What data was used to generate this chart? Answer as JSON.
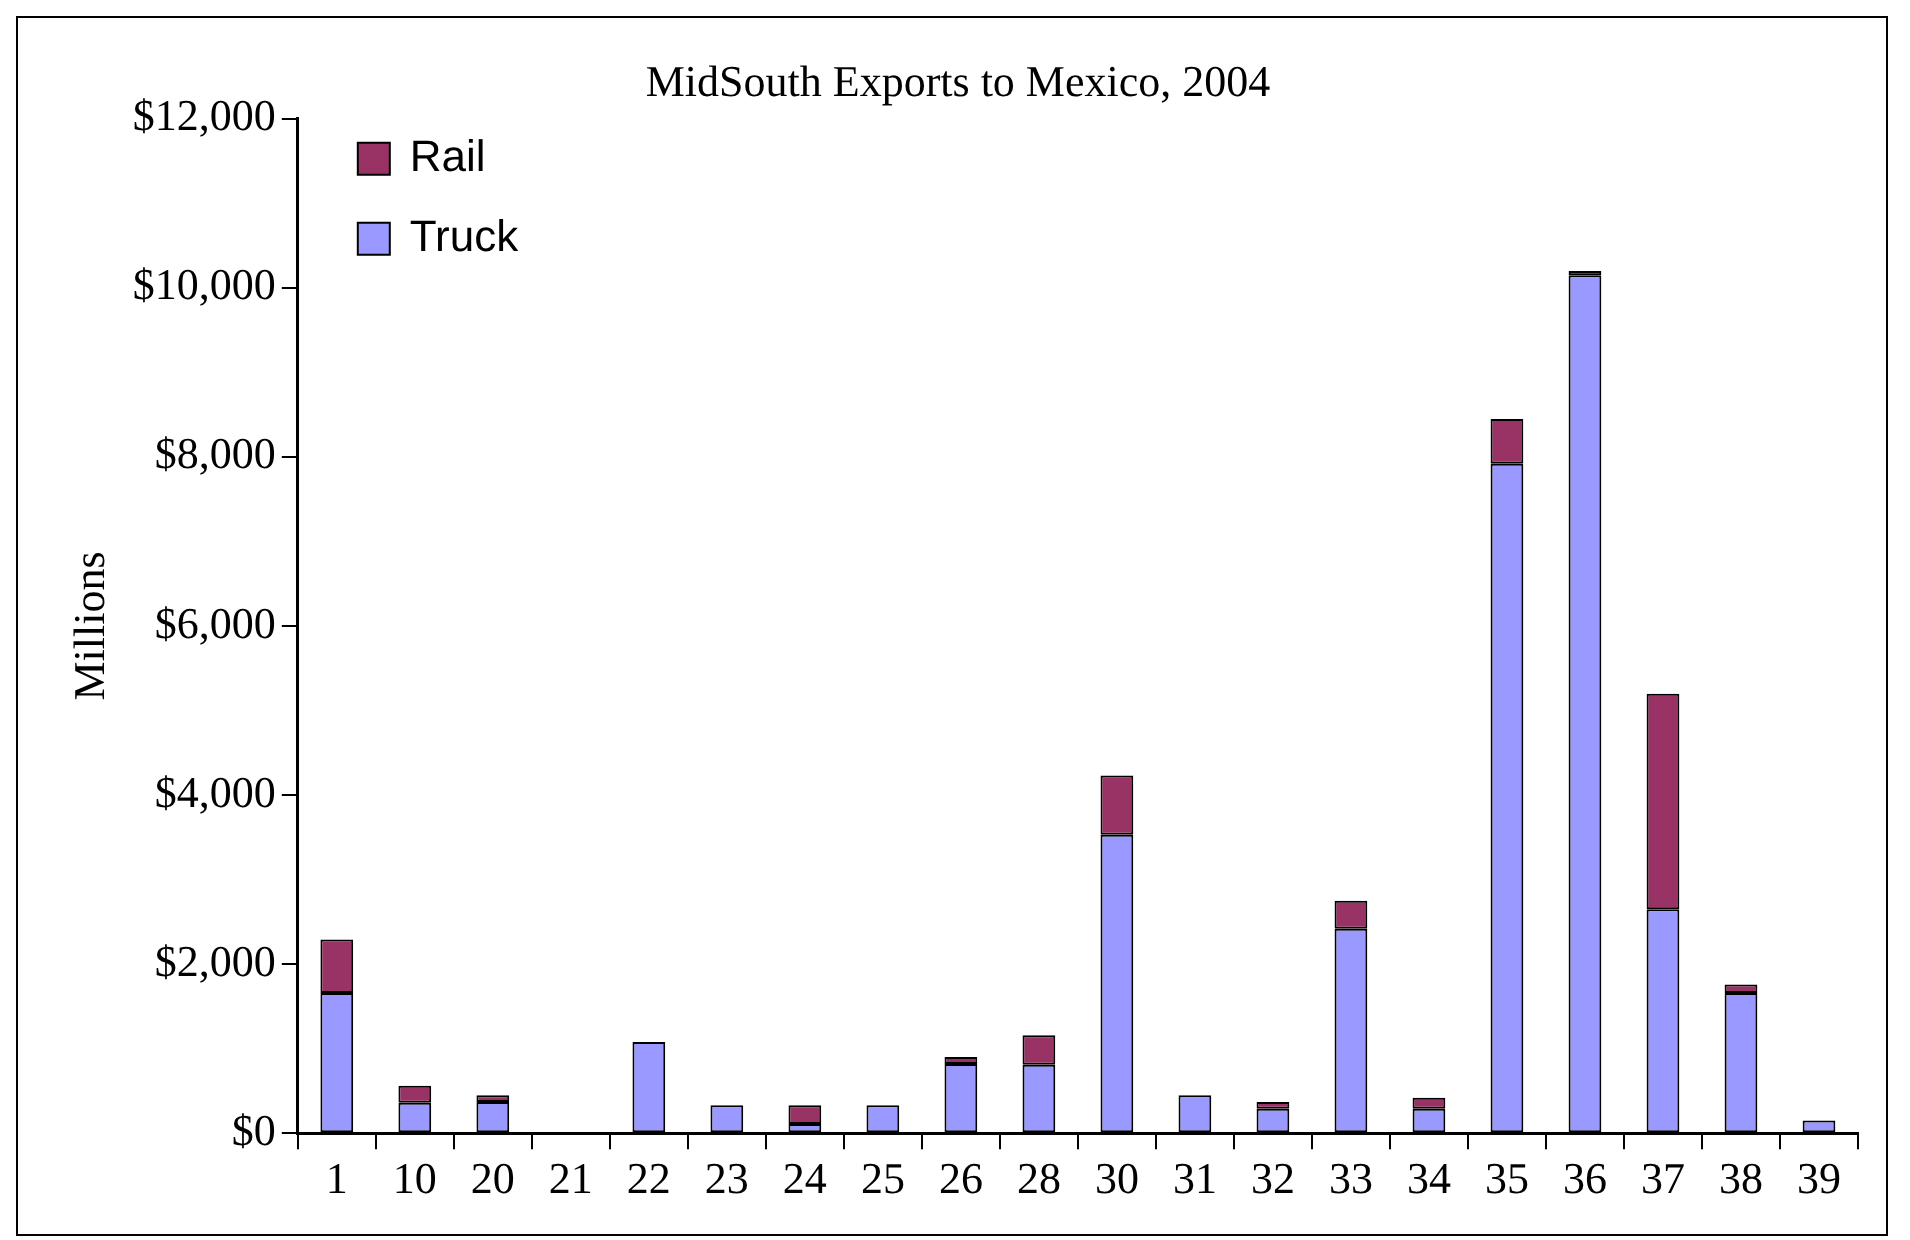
{
  "chart_data": {
    "type": "bar",
    "title": "MidSouth Exports to Mexico, 2004",
    "ylabel": "Millions",
    "stacked": true,
    "legend": "top left",
    "grid": false,
    "categories": [
      "1",
      "10",
      "20",
      "21",
      "22",
      "23",
      "24",
      "25",
      "26",
      "28",
      "30",
      "31",
      "32",
      "33",
      "34",
      "35",
      "36",
      "37",
      "38",
      "39"
    ],
    "series": [
      {
        "name": "Truck",
        "color": "#9999ff",
        "values": [
          1660,
          360,
          370,
          0,
          1080,
          330,
          110,
          330,
          820,
          810,
          3530,
          450,
          290,
          2420,
          290,
          7920,
          10150,
          2650,
          1660,
          150
        ]
      },
      {
        "name": "Rail",
        "color": "#993366",
        "values": [
          630,
          200,
          80,
          0,
          0,
          0,
          220,
          0,
          80,
          350,
          700,
          0,
          80,
          330,
          130,
          530,
          50,
          2550,
          100,
          0
        ]
      }
    ],
    "ylim": [
      0,
      12000
    ],
    "yticks": [
      {
        "value": 0,
        "label": "$0"
      },
      {
        "value": 2000,
        "label": "$2,000"
      },
      {
        "value": 4000,
        "label": "$4,000"
      },
      {
        "value": 6000,
        "label": "$6,000"
      },
      {
        "value": 8000,
        "label": "$8,000"
      },
      {
        "value": 10000,
        "label": "$10,000"
      },
      {
        "value": 12000,
        "label": "$12,000"
      }
    ]
  }
}
